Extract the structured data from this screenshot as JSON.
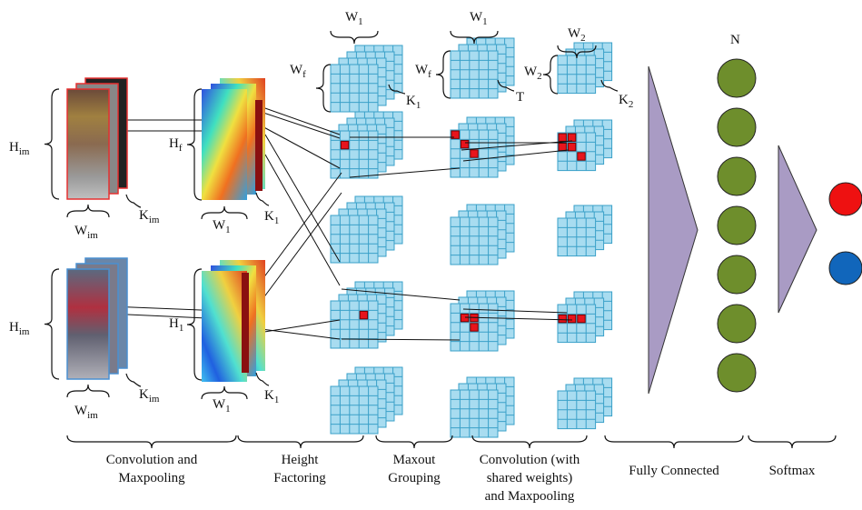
{
  "symbols": {
    "h_im": "H",
    "h_im_sub": "im",
    "w_im": "W",
    "w_im_sub": "im",
    "k_im": "K",
    "k_im_sub": "im",
    "h_f": "H",
    "h_f_sub": "f",
    "h_1": "H",
    "h_1_sub": "1",
    "w_1": "W",
    "w_1_sub": "1",
    "w_f": "W",
    "w_f_sub": "f",
    "w_2": "W",
    "w_2_sub": "2",
    "k_1": "K",
    "k_1_sub": "1",
    "k_2": "K",
    "k_2_sub": "2",
    "t": "T",
    "n": "N"
  },
  "stages": [
    {
      "lines": [
        "Convolution and",
        "Maxpooling"
      ]
    },
    {
      "lines": [
        "Height",
        "Factoring"
      ]
    },
    {
      "lines": [
        "Maxout",
        "Grouping"
      ]
    },
    {
      "lines": [
        "Convolution (with",
        "shared weights)",
        "and Maxpooling"
      ]
    },
    {
      "lines": [
        "Fully Connected"
      ]
    },
    {
      "lines": [
        "Softmax"
      ]
    }
  ],
  "colors": {
    "grid_fill": "#a8dcf0",
    "grid_line": "#3aa0c8",
    "highlight": "#e8141c",
    "neuron": "#6e8e2c",
    "fc_triangle": "#a99bc4",
    "output_red": "#ee1111",
    "output_blue": "#1166bb",
    "image_border_top": "#e53030",
    "image_border_bottom": "#4a8fd0"
  },
  "neuron_count": 7,
  "output_count": 2
}
